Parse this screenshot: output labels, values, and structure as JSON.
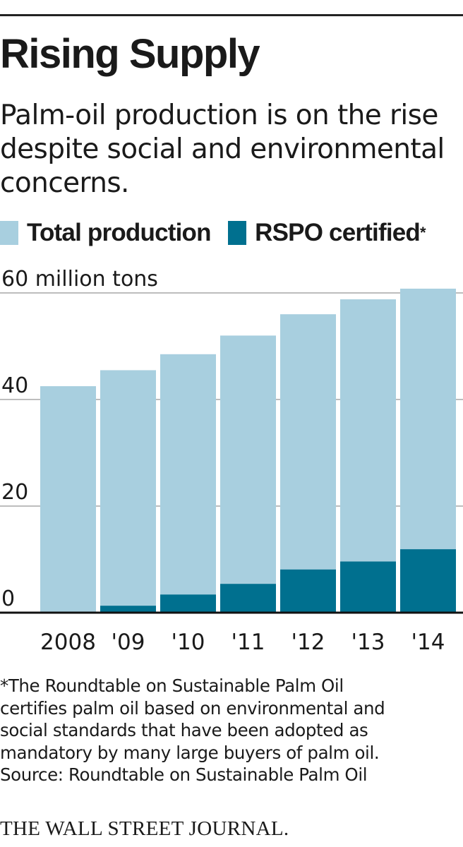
{
  "header": {
    "title": "Rising Supply",
    "subtitle": "Palm-oil production is on the rise despite social and environmental concerns."
  },
  "legend": {
    "items": [
      {
        "label": "Total production",
        "color": "#a8cfdf",
        "suffix": ""
      },
      {
        "label": "RSPO certified",
        "color": "#00708f",
        "suffix": "*"
      }
    ]
  },
  "chart_data": {
    "type": "bar",
    "stacked": "overlay",
    "title": "Rising Supply",
    "ylabel": "60 million tons",
    "ylim": [
      0,
      60
    ],
    "yticks": [
      {
        "value": 0,
        "label": "0"
      },
      {
        "value": 20,
        "label": "20"
      },
      {
        "value": 40,
        "label": "40"
      },
      {
        "value": 60,
        "label": "60 million tons"
      }
    ],
    "categories": [
      "2008",
      "'09",
      "'10",
      "'11",
      "'12",
      "'13",
      "'14"
    ],
    "series": [
      {
        "name": "Total production",
        "color": "#a8cfdf",
        "values": [
          42.5,
          45.5,
          48.5,
          52,
          56,
          58.8,
          60.8
        ]
      },
      {
        "name": "RSPO certified",
        "color": "#00708f",
        "values": [
          0,
          1.3,
          3.4,
          5.4,
          8.1,
          9.6,
          11.9
        ]
      }
    ],
    "grid": true
  },
  "footnote": {
    "lines": [
      "*The Roundtable on Sustainable Palm Oil",
      "certifies palm oil based on environmental and",
      "social standards that have been adopted as",
      "mandatory by many large buyers of palm oil."
    ],
    "source": "Source: Roundtable on Sustainable Palm Oil"
  },
  "brand": "THE WALL STREET JOURNAL."
}
